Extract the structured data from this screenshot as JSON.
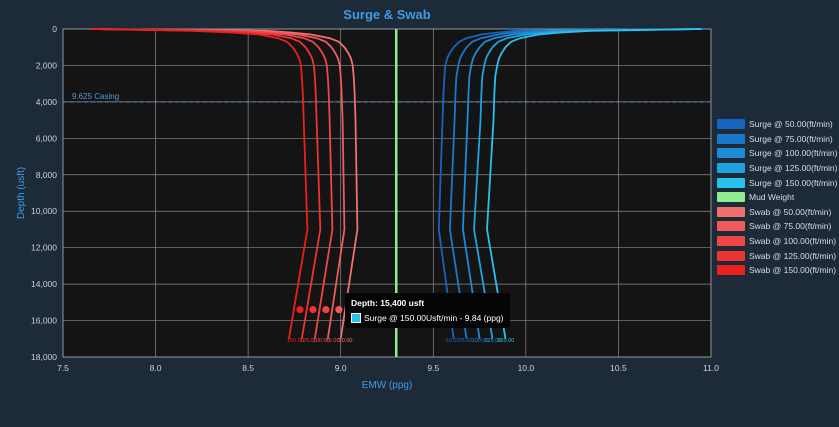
{
  "chart_data": {
    "type": "line",
    "title": "Surge & Swab",
    "xlabel": "EMW (ppg)",
    "ylabel": "Depth (usft)",
    "xlim": [
      7.5,
      11.0
    ],
    "ylim": [
      0,
      18000
    ],
    "y_inverted": true,
    "grid": true,
    "legend_position": "right",
    "x_ticks": [
      "7.5",
      "8.0",
      "8.5",
      "9.0",
      "9.5",
      "10.0",
      "10.5",
      "11.0"
    ],
    "y_ticks": [
      "0",
      "2,000",
      "4,000",
      "6,000",
      "8,000",
      "10,000",
      "12,000",
      "14,000",
      "16,000",
      "18,000"
    ],
    "casing": {
      "label": "9.625 Casing",
      "depth": 4000
    },
    "mud_weight": {
      "name": "Mud Weight",
      "value": 9.3,
      "color": "#90ee90"
    },
    "depth": [
      0,
      100,
      200,
      300,
      500,
      700,
      1000,
      1300,
      1600,
      2000,
      2600,
      3500,
      5000,
      11000,
      17000
    ],
    "surge_series": [
      {
        "name": "Surge @ 50.00(ft/min)",
        "color": "#1565c0",
        "emw": [
          10.95,
          9.95,
          9.84,
          9.76,
          9.68,
          9.64,
          9.61,
          9.59,
          9.575,
          9.565,
          9.56,
          9.555,
          9.55,
          9.53,
          9.61
        ]
      },
      {
        "name": "Surge @ 75.00(ft/min)",
        "color": "#1a78cc",
        "emw": [
          10.95,
          10.05,
          9.93,
          9.85,
          9.76,
          9.71,
          9.68,
          9.66,
          9.645,
          9.635,
          9.625,
          9.62,
          9.615,
          9.59,
          9.68
        ]
      },
      {
        "name": "Surge @ 100.00(ft/min)",
        "color": "#1e8ad8",
        "emw": [
          10.95,
          10.15,
          10.02,
          9.93,
          9.83,
          9.78,
          9.75,
          9.73,
          9.715,
          9.705,
          9.695,
          9.69,
          9.685,
          9.66,
          9.75
        ]
      },
      {
        "name": "Surge @ 125.00(ft/min)",
        "color": "#1fa3e0",
        "emw": [
          10.95,
          10.25,
          10.1,
          10.0,
          9.9,
          9.85,
          9.82,
          9.8,
          9.785,
          9.775,
          9.765,
          9.76,
          9.755,
          9.72,
          9.82
        ]
      },
      {
        "name": "Surge @ 150.00(ft/min)",
        "color": "#29c1f0",
        "emw": [
          10.95,
          10.35,
          10.18,
          10.07,
          9.97,
          9.92,
          9.89,
          9.87,
          9.855,
          9.845,
          9.835,
          9.83,
          9.825,
          9.79,
          9.89
        ]
      }
    ],
    "mud_weight_label": "Mud Weight",
    "swab_series": [
      {
        "name": "Swab @ 50.00(ft/min)",
        "color": "#f07070",
        "emw": [
          7.65,
          8.6,
          8.74,
          8.84,
          8.94,
          8.99,
          9.02,
          9.04,
          9.055,
          9.065,
          9.07,
          9.075,
          9.08,
          9.09,
          9.0
        ]
      },
      {
        "name": "Swab @ 75.00(ft/min)",
        "color": "#ef5a5a",
        "emw": [
          7.65,
          8.5,
          8.66,
          8.77,
          8.87,
          8.92,
          8.95,
          8.97,
          8.985,
          8.995,
          9.0,
          9.005,
          9.01,
          9.02,
          8.93
        ]
      },
      {
        "name": "Swab @ 100.00(ft/min)",
        "color": "#ee4646",
        "emw": [
          7.65,
          8.4,
          8.58,
          8.7,
          8.8,
          8.85,
          8.88,
          8.9,
          8.915,
          8.925,
          8.93,
          8.935,
          8.94,
          8.955,
          8.86
        ]
      },
      {
        "name": "Swab @ 125.00(ft/min)",
        "color": "#ec3434",
        "emw": [
          7.65,
          8.3,
          8.5,
          8.63,
          8.73,
          8.78,
          8.81,
          8.83,
          8.845,
          8.855,
          8.86,
          8.865,
          8.87,
          8.89,
          8.79
        ]
      },
      {
        "name": "Swab @ 150.00(ft/min)",
        "color": "#ea2020",
        "emw": [
          7.65,
          8.2,
          8.42,
          8.56,
          8.66,
          8.71,
          8.74,
          8.76,
          8.775,
          8.785,
          8.79,
          8.795,
          8.8,
          8.82,
          8.72
        ]
      }
    ],
    "markers": {
      "depth": 15400,
      "swab_emw": [
        8.78,
        8.85,
        8.92,
        8.99,
        9.06
      ],
      "surge_emw": [
        9.84
      ]
    },
    "bottom_labels": {
      "depth": 17000,
      "swab": [
        "150.00",
        "125.00",
        "100.00",
        "75.00",
        "50.00"
      ],
      "surge": [
        "50.00",
        "75.00",
        "100.00",
        "125.00",
        "150.00"
      ]
    }
  },
  "tooltip": {
    "title": "Depth: 15,400 usft",
    "text": "Surge @ 150.00Usft/min - 9.84 (ppg)"
  }
}
